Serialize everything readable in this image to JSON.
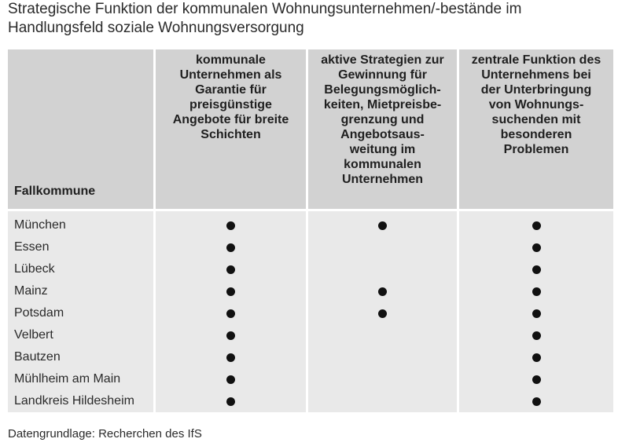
{
  "title_lines": [
    "Strategische Funktion der kommunalen Wohnungsunternehmen/-bestände im",
    "Handlungsfeld soziale Wohnungsversorgung"
  ],
  "table": {
    "first_header": "Fallkommune",
    "columns": [
      {
        "lines": [
          "kommunale",
          "Unternehmen als",
          "Garantie für",
          "preisgünstige",
          "Angebote für breite",
          "Schichten"
        ]
      },
      {
        "lines": [
          "aktive Strategien zur",
          "Gewinnung für",
          "Belegungsmöglich-",
          "keiten, Mietpreisbe-",
          "grenzung und",
          "Angebotsaus-",
          "weitung im",
          "kommunalen",
          "Unternehmen"
        ]
      },
      {
        "lines": [
          "zentrale Funktion des",
          "Unternehmens bei",
          "der Unterbringung",
          "von Wohnungs-",
          "suchenden mit",
          "besonderen",
          "Problemen"
        ]
      }
    ],
    "rows": [
      {
        "name": "München",
        "marks": [
          true,
          true,
          true
        ]
      },
      {
        "name": "Essen",
        "marks": [
          true,
          false,
          true
        ]
      },
      {
        "name": "Lübeck",
        "marks": [
          true,
          false,
          true
        ]
      },
      {
        "name": "Mainz",
        "marks": [
          true,
          true,
          true
        ]
      },
      {
        "name": "Potsdam",
        "marks": [
          true,
          true,
          true
        ]
      },
      {
        "name": "Velbert",
        "marks": [
          true,
          false,
          true
        ]
      },
      {
        "name": "Bautzen",
        "marks": [
          true,
          false,
          true
        ]
      },
      {
        "name": "Mühlheim am Main",
        "marks": [
          true,
          false,
          true
        ]
      },
      {
        "name": "Landkreis Hildesheim",
        "marks": [
          true,
          false,
          true
        ]
      }
    ]
  },
  "footer": "Datengrundlage: Recherchen des IfS"
}
